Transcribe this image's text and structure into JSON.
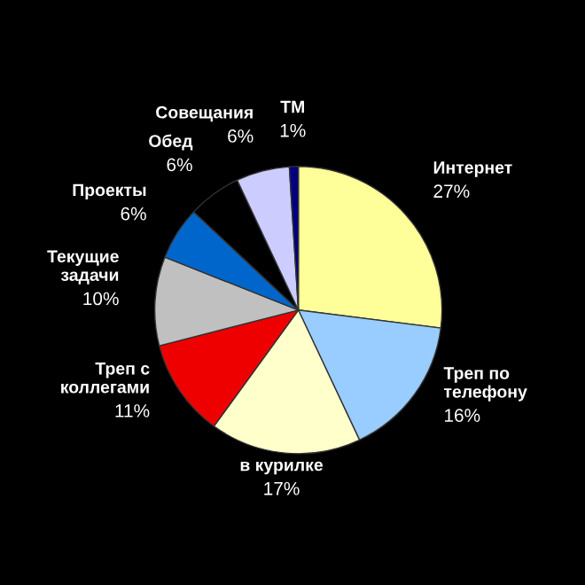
{
  "chart_data": {
    "type": "pie",
    "categories": [
      "Интернет",
      "Треп по телефону",
      "в курилке",
      "Треп с коллегами",
      "Текущие задачи",
      "Проекты",
      "Обед",
      "Совещания",
      "ТМ"
    ],
    "values": [
      27,
      16,
      17,
      11,
      10,
      6,
      6,
      6,
      1
    ],
    "colors": [
      "#ffff99",
      "#99ccff",
      "#ffffcc",
      "#ee0000",
      "#c0c0c0",
      "#0066cc",
      "#000000",
      "#ccccff",
      "#000080"
    ],
    "value_labels": [
      "27%",
      "16%",
      "17%",
      "11%",
      "10%",
      "6%",
      "6%",
      "6%",
      "1%"
    ]
  }
}
